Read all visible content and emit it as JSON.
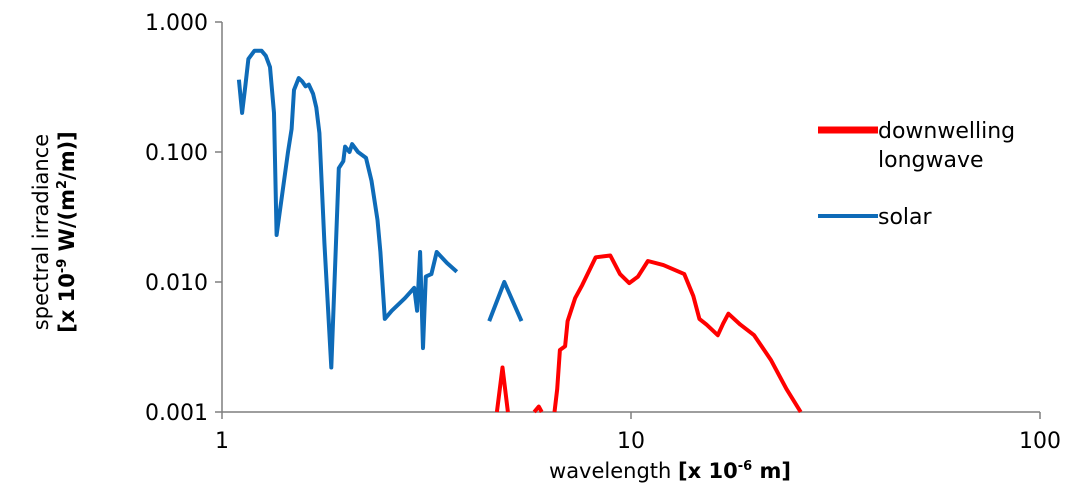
{
  "chart_data": {
    "type": "line",
    "x_scale": "log",
    "y_scale": "log",
    "xlim": [
      1,
      100
    ],
    "ylim": [
      0.001,
      1
    ],
    "x_ticks": [
      {
        "value": 1,
        "label": "1"
      },
      {
        "value": 10,
        "label": "10"
      },
      {
        "value": 100,
        "label": "100"
      }
    ],
    "y_ticks": [
      {
        "value": 0.001,
        "label": "0.001"
      },
      {
        "value": 0.01,
        "label": "0.010"
      },
      {
        "value": 0.1,
        "label": "0.100"
      },
      {
        "value": 1,
        "label": "1.000"
      }
    ],
    "xlabel": {
      "plain": "wavelength ",
      "bold": "[x 10",
      "sup": "-6",
      "bold_end": " m]"
    },
    "ylabel": {
      "line1": {
        "plain": "spectral irradiance"
      },
      "line2": {
        "bold": "[x 10",
        "sup": "-9",
        "bold_mid": "  W/(m",
        "sup2": "2",
        "bold_end": "/m)]"
      }
    },
    "grid": false,
    "legend_position": "right",
    "series": [
      {
        "name": "downwelling longwave",
        "legend_lines": [
          "downwelling",
          "longwave"
        ],
        "color": "#ff0000",
        "segments": [
          [
            [
              4.7,
              0.001
            ],
            [
              4.85,
              0.0022
            ],
            [
              5.0,
              0.001
            ]
          ],
          [
            [
              5.8,
              0.001
            ],
            [
              5.95,
              0.0011
            ],
            [
              6.05,
              0.001
            ]
          ],
          [
            [
              6.5,
              0.001
            ],
            [
              6.6,
              0.0015
            ],
            [
              6.7,
              0.003
            ],
            [
              6.9,
              0.0032
            ],
            [
              7.0,
              0.005
            ],
            [
              7.3,
              0.0075
            ],
            [
              7.6,
              0.0095
            ],
            [
              8.2,
              0.0155
            ],
            [
              8.9,
              0.016
            ],
            [
              9.4,
              0.0115
            ],
            [
              9.9,
              0.0098
            ],
            [
              10.4,
              0.011
            ],
            [
              11.0,
              0.0145
            ],
            [
              12.0,
              0.0135
            ],
            [
              13.5,
              0.0115
            ],
            [
              14.2,
              0.0078
            ],
            [
              14.7,
              0.0052
            ],
            [
              15.3,
              0.0047
            ],
            [
              16.3,
              0.0039
            ],
            [
              16.8,
              0.0048
            ],
            [
              17.3,
              0.0057
            ],
            [
              18.5,
              0.0047
            ],
            [
              20.0,
              0.0039
            ],
            [
              22.0,
              0.0025
            ],
            [
              24.0,
              0.0015
            ],
            [
              26.0,
              0.001
            ]
          ]
        ]
      },
      {
        "name": "solar",
        "legend_lines": [
          "solar"
        ],
        "color": "#0e6bb8",
        "segments": [
          [
            [
              1.1,
              0.36
            ],
            [
              1.12,
              0.2
            ],
            [
              1.14,
              0.32
            ],
            [
              1.16,
              0.52
            ],
            [
              1.2,
              0.6
            ],
            [
              1.25,
              0.6
            ],
            [
              1.28,
              0.55
            ],
            [
              1.31,
              0.45
            ],
            [
              1.34,
              0.2
            ],
            [
              1.36,
              0.023
            ],
            [
              1.4,
              0.045
            ],
            [
              1.45,
              0.1
            ],
            [
              1.48,
              0.15
            ],
            [
              1.5,
              0.3
            ],
            [
              1.54,
              0.37
            ],
            [
              1.57,
              0.35
            ],
            [
              1.6,
              0.32
            ],
            [
              1.63,
              0.33
            ],
            [
              1.67,
              0.28
            ],
            [
              1.7,
              0.22
            ],
            [
              1.73,
              0.14
            ],
            [
              1.78,
              0.02
            ],
            [
              1.85,
              0.0022
            ],
            [
              1.93,
              0.075
            ],
            [
              1.98,
              0.085
            ],
            [
              2.0,
              0.11
            ],
            [
              2.05,
              0.1
            ],
            [
              2.08,
              0.115
            ],
            [
              2.15,
              0.1
            ],
            [
              2.25,
              0.09
            ],
            [
              2.32,
              0.06
            ],
            [
              2.4,
              0.03
            ],
            [
              2.44,
              0.017
            ],
            [
              2.5,
              0.0052
            ],
            [
              2.6,
              0.006
            ],
            [
              2.8,
              0.0075
            ],
            [
              2.95,
              0.009
            ],
            [
              3.0,
              0.006
            ],
            [
              3.05,
              0.017
            ],
            [
              3.1,
              0.0031
            ],
            [
              3.15,
              0.011
            ],
            [
              3.25,
              0.0115
            ],
            [
              3.35,
              0.017
            ],
            [
              3.55,
              0.014
            ],
            [
              3.75,
              0.012
            ]
          ],
          [
            [
              4.5,
              0.005
            ],
            [
              4.9,
              0.01
            ],
            [
              5.4,
              0.005
            ]
          ]
        ]
      }
    ]
  }
}
